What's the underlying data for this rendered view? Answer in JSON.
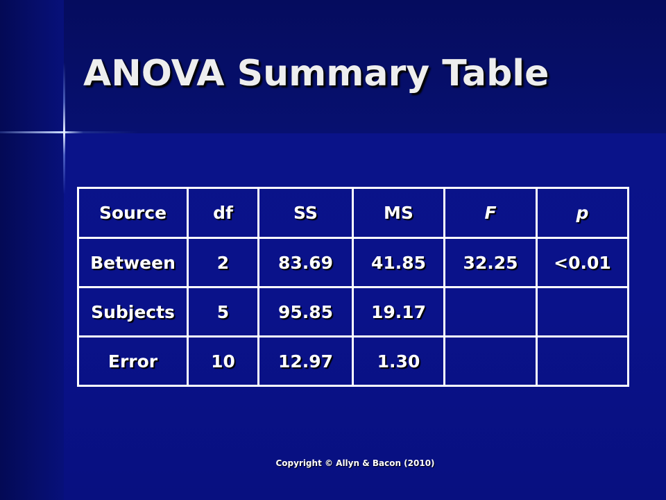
{
  "title": "ANOVA Summary Table",
  "table": {
    "header": [
      "Source",
      "df",
      "SS",
      "MS",
      "F",
      "p"
    ],
    "rows": [
      [
        "Between",
        "2",
        "83.69",
        "41.85",
        "32.25",
        "<0.01"
      ],
      [
        "Subjects",
        "5",
        "95.85",
        "19.17"
      ],
      [
        "Error",
        "10",
        "12.97",
        "1.30"
      ]
    ]
  },
  "footer": "Copyright © Allyn & Bacon (2010)"
}
